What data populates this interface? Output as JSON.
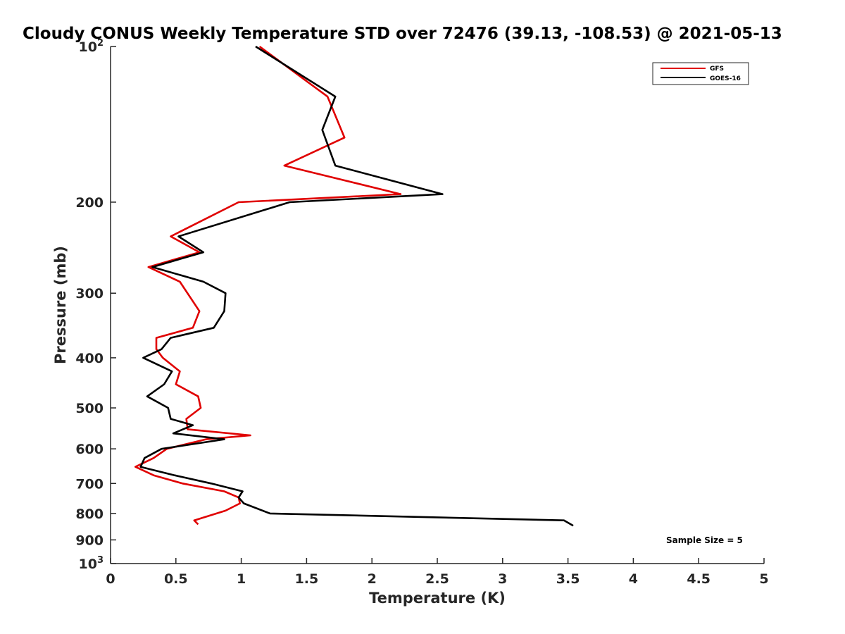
{
  "chart_data": {
    "type": "line",
    "title": "Cloudy CONUS Weekly Temperature STD over 72476 (39.13, -108.53) @ 2021-05-13",
    "xlabel": "Temperature (K)",
    "ylabel": "Pressure (mb)",
    "xlim": [
      0,
      5
    ],
    "ylim": [
      100,
      1000
    ],
    "y_scale": "log",
    "y_reversed": true,
    "x_ticks": [
      0,
      0.5,
      1,
      1.5,
      2,
      2.5,
      3,
      3.5,
      4,
      4.5,
      5
    ],
    "x_tick_labels": [
      "0",
      "0.5",
      "1",
      "1.5",
      "2",
      "2.5",
      "3",
      "3.5",
      "4",
      "4.5",
      "5"
    ],
    "y_ticks": [
      100,
      200,
      300,
      400,
      500,
      600,
      700,
      800,
      900,
      1000
    ],
    "y_tick_labels": [
      {
        "base": "10",
        "exp": "2"
      },
      {
        "base": "200",
        "exp": ""
      },
      {
        "base": "300",
        "exp": ""
      },
      {
        "base": "400",
        "exp": ""
      },
      {
        "base": "500",
        "exp": ""
      },
      {
        "base": "600",
        "exp": ""
      },
      {
        "base": "700",
        "exp": ""
      },
      {
        "base": "800",
        "exp": ""
      },
      {
        "base": "900",
        "exp": ""
      },
      {
        "base": "10",
        "exp": "3"
      }
    ],
    "grid": false,
    "legend_position": "top-right",
    "annotation": "Sample Size = 5",
    "series": [
      {
        "name": "GFS",
        "color": "#e00000",
        "points": [
          [
            1.14,
            100
          ],
          [
            1.66,
            125
          ],
          [
            1.79,
            150
          ],
          [
            1.33,
            170
          ],
          [
            2.22,
            193
          ],
          [
            0.98,
            200
          ],
          [
            0.46,
            233
          ],
          [
            0.68,
            250
          ],
          [
            0.29,
            267
          ],
          [
            0.53,
            285
          ],
          [
            0.68,
            325
          ],
          [
            0.63,
            350
          ],
          [
            0.35,
            366
          ],
          [
            0.35,
            385
          ],
          [
            0.4,
            400
          ],
          [
            0.53,
            425
          ],
          [
            0.5,
            450
          ],
          [
            0.67,
            475
          ],
          [
            0.69,
            500
          ],
          [
            0.58,
            525
          ],
          [
            0.59,
            550
          ],
          [
            1.07,
            565
          ],
          [
            0.73,
            575
          ],
          [
            0.43,
            600
          ],
          [
            0.33,
            625
          ],
          [
            0.19,
            650
          ],
          [
            0.33,
            675
          ],
          [
            0.55,
            700
          ],
          [
            0.87,
            725
          ],
          [
            0.98,
            745
          ],
          [
            0.99,
            765
          ],
          [
            0.88,
            790
          ],
          [
            0.64,
            825
          ],
          [
            0.67,
            840
          ]
        ]
      },
      {
        "name": "GOES-16",
        "color": "#000000",
        "points": [
          [
            1.11,
            100
          ],
          [
            1.72,
            125
          ],
          [
            1.62,
            145
          ],
          [
            1.72,
            170
          ],
          [
            2.54,
            193
          ],
          [
            1.37,
            200
          ],
          [
            0.52,
            233
          ],
          [
            0.71,
            250
          ],
          [
            0.32,
            267
          ],
          [
            0.71,
            285
          ],
          [
            0.88,
            300
          ],
          [
            0.87,
            325
          ],
          [
            0.79,
            350
          ],
          [
            0.46,
            366
          ],
          [
            0.39,
            385
          ],
          [
            0.25,
            400
          ],
          [
            0.47,
            425
          ],
          [
            0.41,
            450
          ],
          [
            0.28,
            475
          ],
          [
            0.44,
            500
          ],
          [
            0.46,
            525
          ],
          [
            0.63,
            540
          ],
          [
            0.48,
            560
          ],
          [
            0.87,
            575
          ],
          [
            0.39,
            600
          ],
          [
            0.26,
            625
          ],
          [
            0.23,
            650
          ],
          [
            0.49,
            675
          ],
          [
            0.77,
            700
          ],
          [
            1.01,
            725
          ],
          [
            0.98,
            745
          ],
          [
            1.02,
            765
          ],
          [
            1.22,
            800
          ],
          [
            3.47,
            825
          ],
          [
            3.54,
            845
          ]
        ]
      }
    ]
  }
}
